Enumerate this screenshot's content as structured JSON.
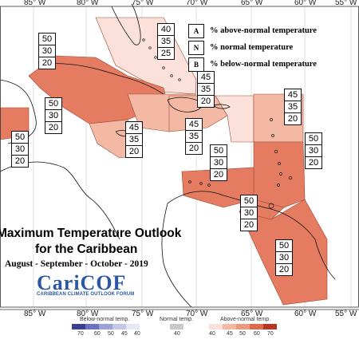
{
  "map": {
    "title_line1": "Maximum Temperature Outlook",
    "title_line2": "for the Caribbean",
    "period": "August - September - October - 2019",
    "longitudes": [
      "85° W",
      "80° W",
      "75° W",
      "70° W",
      "65° W",
      "60° W",
      "55° W"
    ],
    "colors": {
      "above_40": "#fbe1d9",
      "above_45": "#f4b9a4",
      "above_50": "#e57c62",
      "land_outline": "#111111"
    }
  },
  "key": {
    "A": "% above-normal temperature",
    "N": "% normal temperature",
    "B": "% below-normal temperature",
    "A_letter": "A",
    "N_letter": "N",
    "B_letter": "B"
  },
  "logo": {
    "name": "CariCOF",
    "subtitle": "CARIBBEAN CLIMATE OUTLOOK FORUM"
  },
  "zones": [
    {
      "A": "50",
      "N": "30",
      "B": "20"
    },
    {
      "A": "40",
      "N": "35",
      "B": "25"
    },
    {
      "A": "50",
      "N": "30",
      "B": "20"
    },
    {
      "A": "45",
      "N": "35",
      "B": "20"
    },
    {
      "A": "45",
      "N": "35",
      "B": "20"
    },
    {
      "A": "45",
      "N": "35",
      "B": "20"
    },
    {
      "A": "45",
      "N": "35",
      "B": "20"
    },
    {
      "A": "50",
      "N": "30",
      "B": "20"
    },
    {
      "A": "50",
      "N": "30",
      "B": "20"
    },
    {
      "A": "50",
      "N": "30",
      "B": "20"
    },
    {
      "A": "50",
      "N": "30",
      "B": "20"
    },
    {
      "A": "50",
      "N": "30",
      "B": "20"
    }
  ],
  "scale": {
    "below_label": "Below-normal temp.",
    "normal_label": "Normal temp.",
    "above_label": "Above-normal temp.",
    "below_values": [
      "70",
      "60",
      "50",
      "45",
      "40"
    ],
    "normal_value": "40",
    "above_values": [
      "40",
      "45",
      "50",
      "60",
      "70"
    ],
    "below_colors": [
      "#3a3f8f",
      "#6b73c0",
      "#9aa2d8",
      "#c3c8e8",
      "#e6e8f6"
    ],
    "normal_color": "#c8c8c8",
    "above_colors": [
      "#fbe1d9",
      "#f4b9a4",
      "#e99a80",
      "#de6a4e",
      "#b83526"
    ]
  }
}
